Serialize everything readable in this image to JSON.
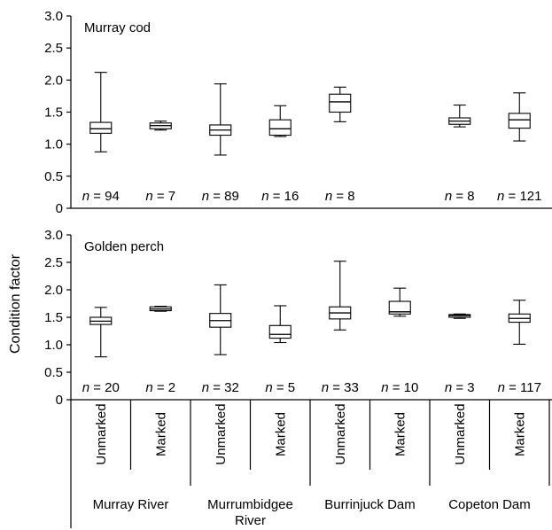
{
  "chart_data": {
    "type": "boxplot",
    "ylabel": "Condition factor",
    "yticks": [
      "3.0",
      "2.5",
      "2.0",
      "1.5",
      "1.0",
      "0.5",
      "0"
    ],
    "ylim": [
      0,
      3.0
    ],
    "categories": [
      {
        "group": "Murray River",
        "status": "Unmarked"
      },
      {
        "group": "Murray River",
        "status": "Marked"
      },
      {
        "group": "Murrumbidgee River",
        "status": "Unmarked"
      },
      {
        "group": "Murrumbidgee River",
        "status": "Marked"
      },
      {
        "group": "Burrinjuck Dam",
        "status": "Unmarked"
      },
      {
        "group": "Burrinjuck Dam",
        "status": "Marked"
      },
      {
        "group": "Copeton Dam",
        "status": "Unmarked"
      },
      {
        "group": "Copeton Dam",
        "status": "Marked"
      }
    ],
    "groups": [
      "Murray River",
      "Murrumbidgee River",
      "Burrinjuck Dam",
      "Copeton Dam"
    ],
    "group_labels": [
      [
        "Murray River"
      ],
      [
        "Murrumbidgee",
        "River"
      ],
      [
        "Burrinjuck Dam"
      ],
      [
        "Copeton Dam"
      ]
    ],
    "panels": [
      {
        "title": "Murray cod",
        "boxes": [
          {
            "min": 0.88,
            "q1": 1.17,
            "median": 1.24,
            "q3": 1.34,
            "max": 2.12,
            "n": "n = 94"
          },
          {
            "min": 1.22,
            "q1": 1.24,
            "median": 1.29,
            "q3": 1.33,
            "max": 1.36,
            "n": "n = 7"
          },
          {
            "min": 0.83,
            "q1": 1.14,
            "median": 1.22,
            "q3": 1.3,
            "max": 1.94,
            "n": "n = 89"
          },
          {
            "min": 1.12,
            "q1": 1.14,
            "median": 1.24,
            "q3": 1.38,
            "max": 1.6,
            "n": "n = 16"
          },
          {
            "min": 1.35,
            "q1": 1.5,
            "median": 1.66,
            "q3": 1.78,
            "max": 1.89,
            "n": "n = 8"
          },
          null,
          {
            "min": 1.27,
            "q1": 1.31,
            "median": 1.36,
            "q3": 1.41,
            "max": 1.61,
            "n": "n = 8"
          },
          {
            "min": 1.05,
            "q1": 1.25,
            "median": 1.38,
            "q3": 1.48,
            "max": 1.8,
            "n": "n = 121"
          }
        ]
      },
      {
        "title": "Golden perch",
        "boxes": [
          {
            "min": 0.78,
            "q1": 1.37,
            "median": 1.43,
            "q3": 1.5,
            "max": 1.68,
            "n": "n = 20"
          },
          {
            "min": 1.61,
            "q1": 1.62,
            "median": 1.65,
            "q3": 1.69,
            "max": 1.7,
            "n": "n = 2"
          },
          {
            "min": 0.82,
            "q1": 1.32,
            "median": 1.44,
            "q3": 1.57,
            "max": 2.09,
            "n": "n = 32"
          },
          {
            "min": 1.04,
            "q1": 1.12,
            "median": 1.19,
            "q3": 1.35,
            "max": 1.71,
            "n": "n = 5"
          },
          {
            "min": 1.27,
            "q1": 1.47,
            "median": 1.58,
            "q3": 1.69,
            "max": 2.52,
            "n": "n = 33"
          },
          {
            "min": 1.52,
            "q1": 1.56,
            "median": 1.6,
            "q3": 1.79,
            "max": 2.03,
            "n": "n = 10"
          },
          {
            "min": 1.48,
            "q1": 1.5,
            "median": 1.53,
            "q3": 1.55,
            "max": 1.56,
            "n": "n = 3"
          },
          {
            "min": 1.01,
            "q1": 1.41,
            "median": 1.48,
            "q3": 1.56,
            "max": 1.81,
            "n": "n = 117"
          }
        ]
      }
    ]
  }
}
